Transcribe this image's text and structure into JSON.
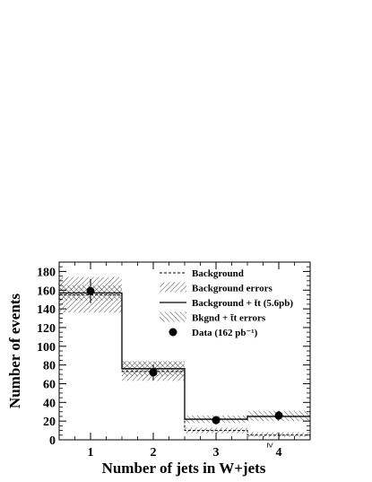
{
  "chart_data": {
    "type": "bar",
    "xlabel": "Number of jets in W+jets",
    "ylabel": "Number of events",
    "ylim": [
      0,
      190
    ],
    "yticks": [
      0,
      20,
      40,
      60,
      80,
      100,
      120,
      140,
      160,
      180
    ],
    "categories": [
      "1",
      "2",
      "3",
      "4"
    ],
    "category_prefix": [
      "",
      "",
      "",
      "≥"
    ],
    "grid": false,
    "legend_position": "top-right",
    "series": [
      {
        "name": "Background",
        "style": "dashed-step",
        "values": [
          155,
          73,
          10,
          5
        ]
      },
      {
        "name": "Background errors",
        "style": "hatch-band",
        "low": [
          136,
          63,
          7,
          3
        ],
        "high": [
          174,
          84,
          13,
          8
        ]
      },
      {
        "name": "Background + t̄t (5.6pb)",
        "style": "solid-step",
        "values": [
          157,
          76,
          22,
          25
        ]
      },
      {
        "name": "Bkgnd + t̄t errors",
        "style": "hatch-band",
        "low": [
          149,
          68,
          18,
          20
        ],
        "high": [
          165,
          84,
          26,
          31
        ]
      },
      {
        "name": "Data (162 pb⁻¹)",
        "style": "points",
        "values": [
          159,
          72,
          21,
          26
        ],
        "errors": [
          13,
          8.5,
          4.6,
          5.1
        ]
      }
    ]
  }
}
